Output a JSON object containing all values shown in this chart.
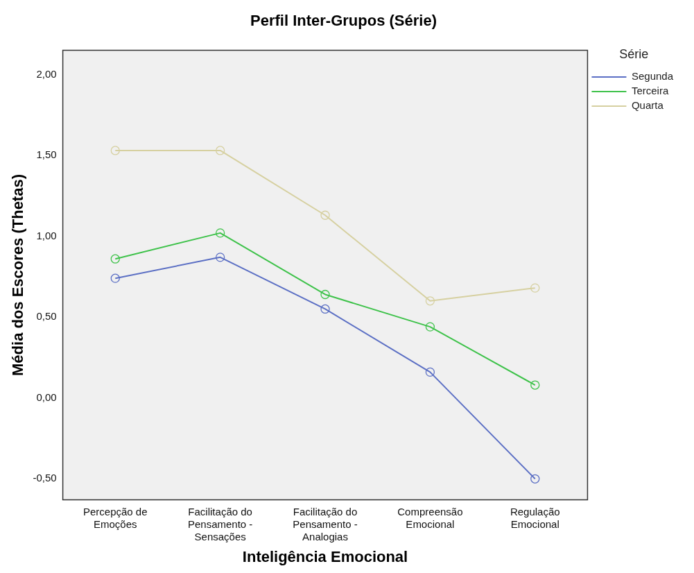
{
  "chart_data": {
    "type": "line",
    "title": "Perfil Inter-Grupos (Série)",
    "xlabel": "Inteligência Emocional",
    "ylabel": "Média dos Escores (Thetas)",
    "legend_title": "Série",
    "legend": "right",
    "categories": [
      "Percepção de Emoções",
      "Facilitação do Pensamento - Sensações",
      "Facilitação do Pensamento - Analogias",
      "Compreensão Emocional",
      "Regulação Emocional"
    ],
    "series": [
      {
        "name": "Segunda",
        "color": "#5b6fc4",
        "values": [
          0.74,
          0.87,
          0.55,
          0.16,
          -0.5
        ]
      },
      {
        "name": "Terceira",
        "color": "#3ec24a",
        "values": [
          0.86,
          1.02,
          0.64,
          0.44,
          0.08
        ]
      },
      {
        "name": "Quarta",
        "color": "#d6d0a0",
        "values": [
          1.53,
          1.53,
          1.13,
          0.6,
          0.68
        ]
      }
    ],
    "ylim": [
      -0.63,
      2.15
    ],
    "yticks": [
      {
        "value": -0.5,
        "label": "-0,50"
      },
      {
        "value": 0,
        "label": "0,00"
      },
      {
        "value": 0.5,
        "label": "0,50"
      },
      {
        "value": 1,
        "label": "1,00"
      },
      {
        "value": 1.5,
        "label": "1,50"
      },
      {
        "value": 2,
        "label": "2,00"
      }
    ],
    "grid": false,
    "marker": "circle",
    "line_style": "solid"
  }
}
